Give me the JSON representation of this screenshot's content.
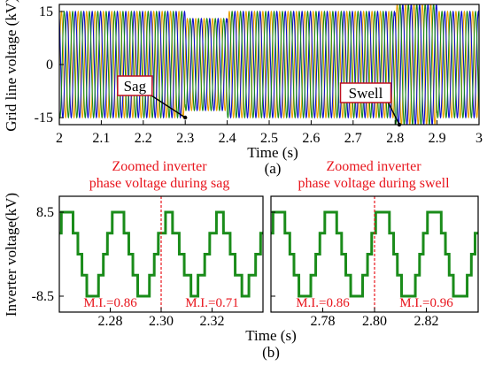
{
  "chart_data": [
    {
      "type": "line",
      "panel_label": "(a)",
      "ylabel": "Grid line voltage (kV)",
      "xlabel": "Time (s)",
      "xlim": [
        2.0,
        3.0
      ],
      "ylim": [
        -17,
        17
      ],
      "xticks": [
        "2",
        "2.1",
        "2.2",
        "2.3",
        "2.4",
        "2.5",
        "2.6",
        "2.7",
        "2.8",
        "2.9",
        "3"
      ],
      "yticks": [
        "15",
        "0",
        "-15"
      ],
      "amplitude_segments": [
        {
          "x_start": 2.0,
          "x_end": 2.3,
          "amplitude": 15
        },
        {
          "x_start": 2.3,
          "x_end": 2.4,
          "amplitude": 13
        },
        {
          "x_start": 2.4,
          "x_end": 2.8,
          "amplitude": 15
        },
        {
          "x_start": 2.8,
          "x_end": 2.9,
          "amplitude": 17
        },
        {
          "x_start": 2.9,
          "x_end": 3.0,
          "amplitude": 15
        }
      ],
      "annotations": [
        {
          "text": "Sag",
          "box_x": 2.18,
          "box_y": -6,
          "arrow_x": 2.3,
          "arrow_y": -15
        },
        {
          "text": "Swell",
          "box_x": 2.73,
          "box_y": -8,
          "arrow_x": 2.81,
          "arrow_y": -17
        }
      ],
      "series_colors": [
        "#e8a000",
        "#1010cc",
        "#1a8c1a"
      ]
    },
    {
      "type": "line",
      "title": "Zoomed inverter\nphase voltage during sag",
      "xlim": [
        2.26,
        2.34
      ],
      "ylim": [
        -8.5,
        8.5
      ],
      "xticks": [
        "2.28",
        "2.30",
        "2.32"
      ],
      "yticks": [
        "8.5",
        "-8.5"
      ],
      "change_x": 2.3,
      "modulation_index": [
        {
          "text": "M.I.=0.86",
          "x": 2.28,
          "value": 0.86
        },
        {
          "text": "M.I.=0.71",
          "x": 2.32,
          "value": 0.71
        }
      ]
    },
    {
      "type": "line",
      "title": "Zoomed inverter\nphase voltage during swell",
      "xlim": [
        2.76,
        2.84
      ],
      "ylim": [
        -8.5,
        8.5
      ],
      "xticks": [
        "2.78",
        "2.80",
        "2.82"
      ],
      "yticks": [],
      "change_x": 2.8,
      "modulation_index": [
        {
          "text": "M.I.=0.86",
          "x": 2.78,
          "value": 0.86
        },
        {
          "text": "M.I.=0.96",
          "x": 2.82,
          "value": 0.96
        }
      ]
    }
  ],
  "shared": {
    "ylabel_b": "Inverter voltage(kV)",
    "xlabel_b": "Time (s)",
    "panel_label_b": "(b)"
  },
  "colors": {
    "waveform": "#1a8c1a",
    "marker": "#e8141c",
    "box_border": "#c01020"
  }
}
